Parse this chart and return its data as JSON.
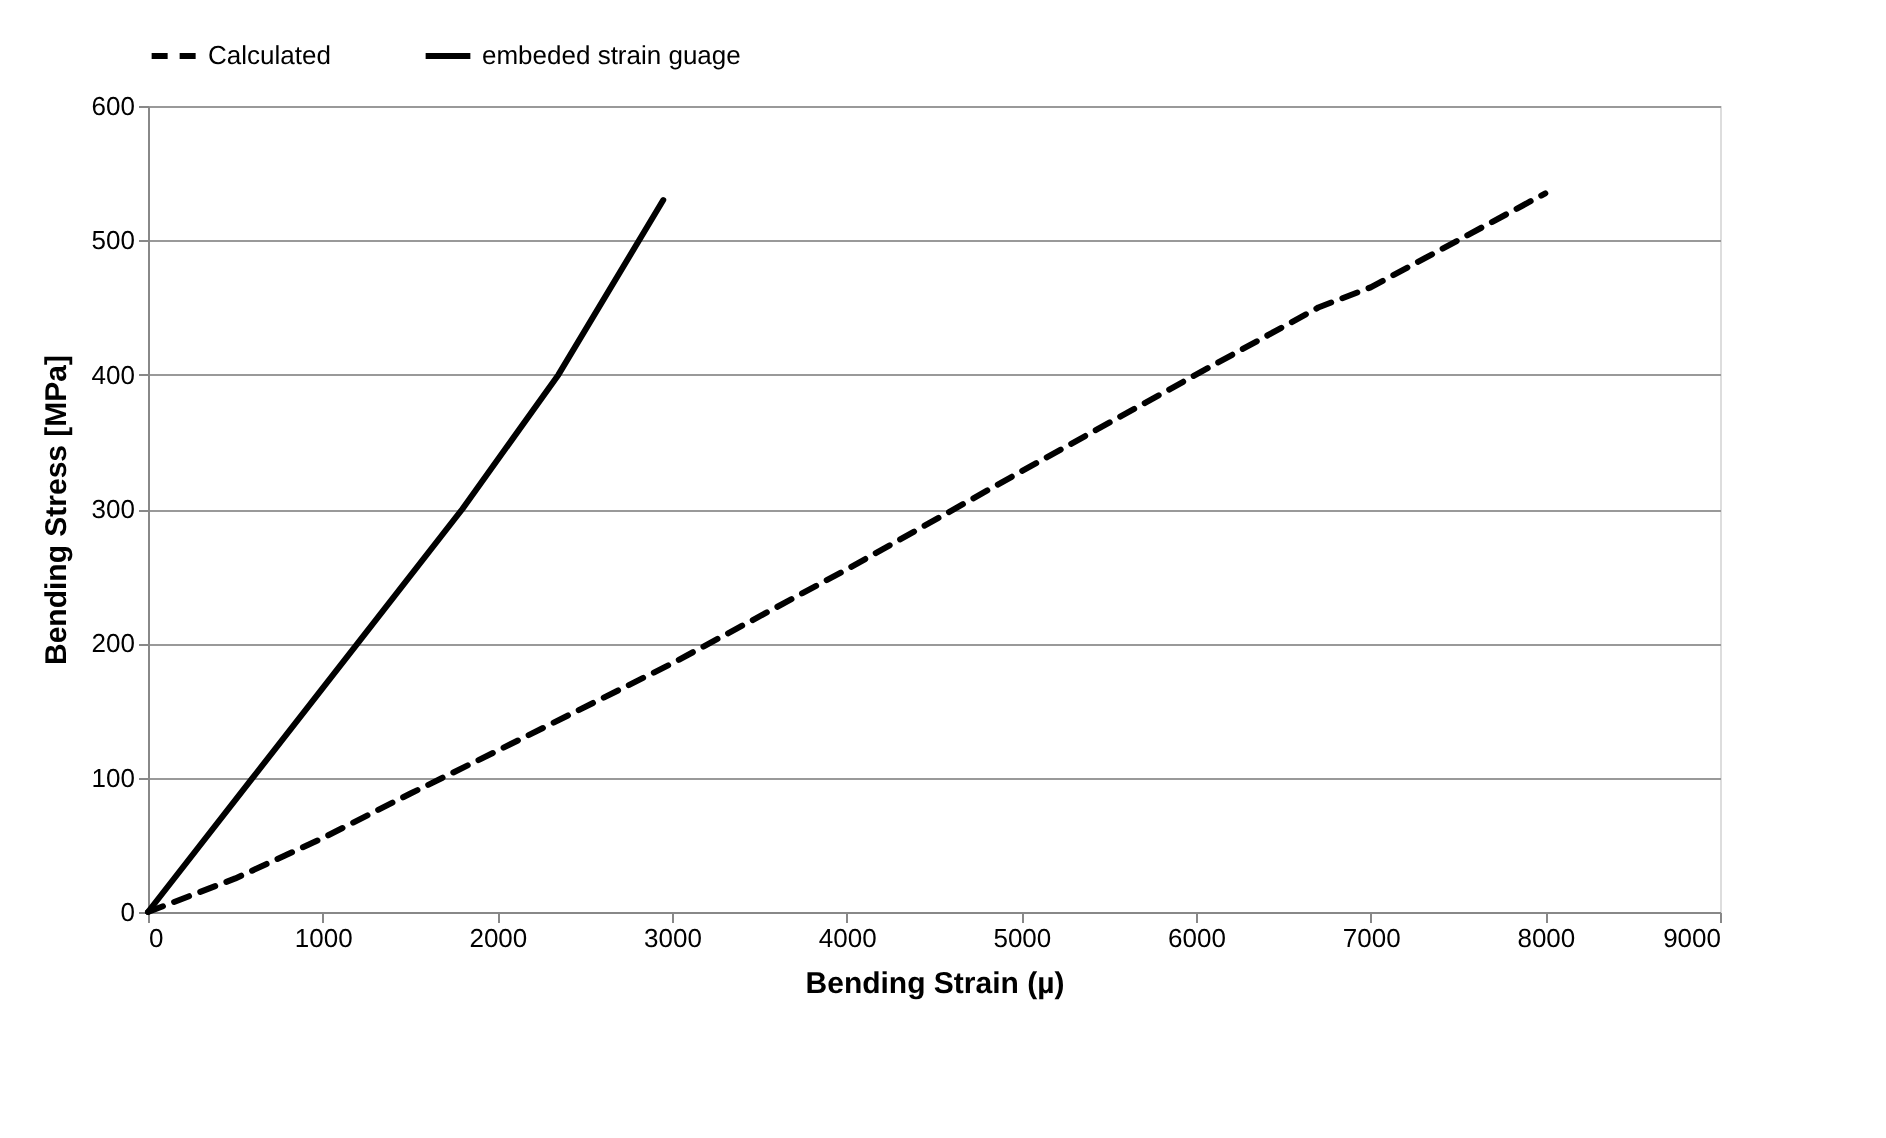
{
  "chart_data": {
    "type": "line",
    "xlabel": "Bending Strain (µ)",
    "ylabel": "Bending Stress [MPa]",
    "xlim": [
      0,
      9000
    ],
    "xticks": [
      0,
      1000,
      2000,
      3000,
      4000,
      5000,
      6000,
      7000,
      8000,
      9000
    ],
    "ylim": [
      0,
      600
    ],
    "yticks": [
      0,
      100,
      200,
      300,
      400,
      500,
      600
    ],
    "grid": "y",
    "legend": "top",
    "marker": "none",
    "series": [
      {
        "name": "Calculated",
        "color": "#000000",
        "line_style": "dashed",
        "x": [
          0,
          500,
          1000,
          1500,
          2000,
          3000,
          4000,
          5000,
          6000,
          6700,
          7000,
          7500,
          8000
        ],
        "values": [
          0,
          25,
          55,
          88,
          120,
          185,
          255,
          328,
          400,
          450,
          465,
          500,
          535
        ]
      },
      {
        "name": "embeded strain guage",
        "color": "#000000",
        "line_style": "solid",
        "x": [
          0,
          600,
          1200,
          1800,
          2350,
          2950
        ],
        "values": [
          0,
          100,
          200,
          300,
          400,
          530
        ]
      }
    ]
  }
}
